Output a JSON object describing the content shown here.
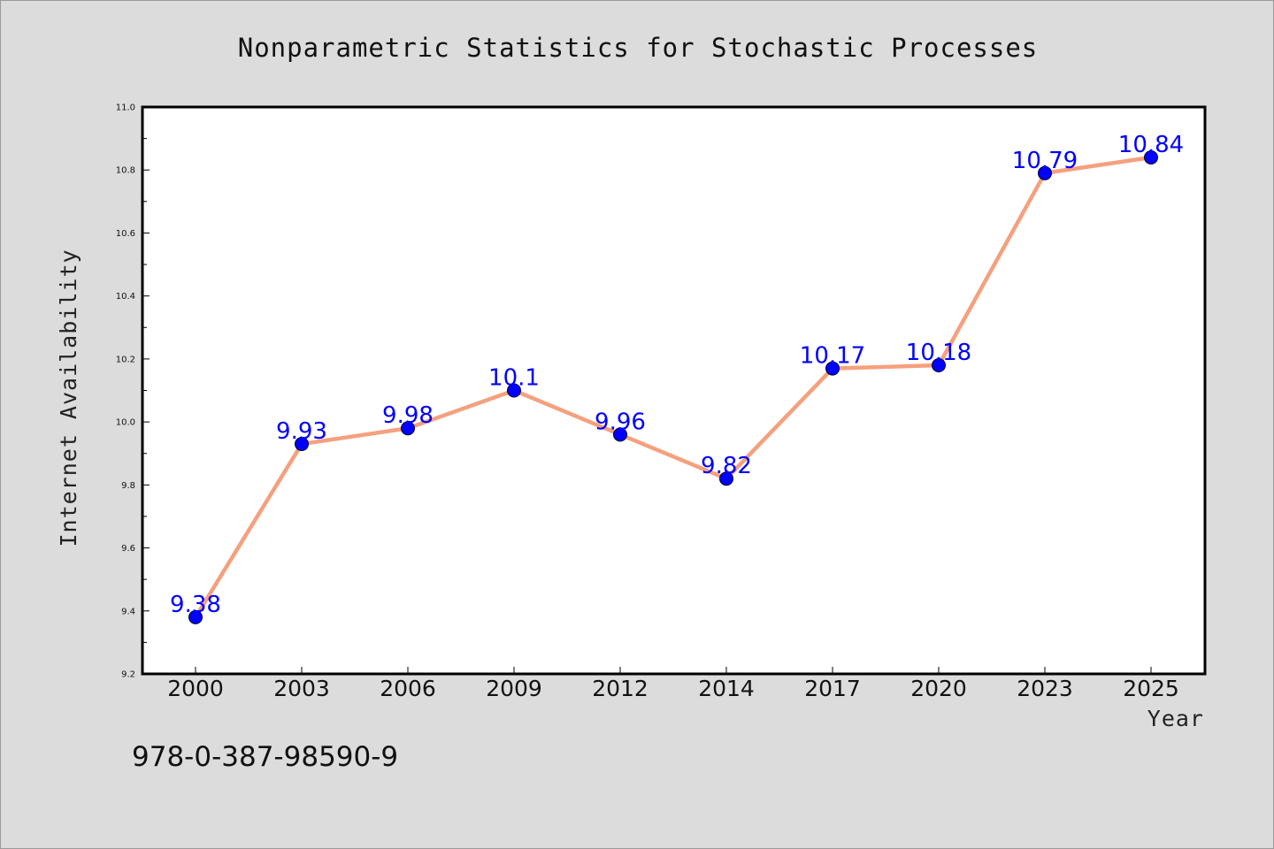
{
  "chart_data": {
    "type": "line",
    "title": "Nonparametric Statistics for Stochastic Processes",
    "xlabel": "Year",
    "ylabel": "Internet Availability",
    "categories": [
      "2000",
      "2003",
      "2006",
      "2009",
      "2012",
      "2014",
      "2017",
      "2020",
      "2023",
      "2025"
    ],
    "series": [
      {
        "values": [
          9.38,
          9.93,
          9.98,
          10.1,
          9.96,
          9.82,
          10.17,
          10.18,
          10.79,
          10.84
        ],
        "labels": [
          "9.38",
          "9.93",
          "9.98",
          "10.1",
          "9.96",
          "9.82",
          "10.17",
          "10.18",
          "10.79",
          "10.84"
        ],
        "line_color": "#f5a07e",
        "marker_color": "#0000ff"
      }
    ],
    "ylim": [
      9.2,
      11.0
    ],
    "yticks": [
      "9.2",
      "9.4",
      "9.6",
      "9.8",
      "10.0",
      "10.2",
      "10.4",
      "10.6",
      "10.8",
      "11.0"
    ],
    "grid": false,
    "legend": "none"
  },
  "footer": {
    "isbn": "978-0-387-98590-9"
  },
  "colors": {
    "background": "#dcdcdc",
    "plot_background": "#ffffff",
    "line": "#f5a07e",
    "marker": "#0000ff",
    "data_label": "#0000ff"
  }
}
